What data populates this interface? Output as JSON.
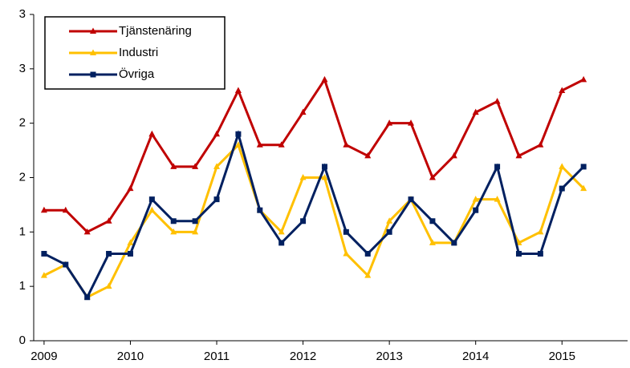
{
  "chart_data": {
    "type": "line",
    "x": [
      2009,
      2009.25,
      2009.5,
      2009.75,
      2010,
      2010.25,
      2010.5,
      2010.75,
      2011,
      2011.25,
      2011.5,
      2011.75,
      2012,
      2012.25,
      2012.5,
      2012.75,
      2013,
      2013.25,
      2013.5,
      2013.75,
      2014,
      2014.25,
      2014.5,
      2014.75,
      2015,
      2015.25
    ],
    "series": [
      {
        "name": "Tjänstenäring",
        "color": "#c00000",
        "marker": "triangle",
        "values": [
          1.2,
          1.2,
          1.0,
          1.1,
          1.4,
          1.9,
          1.6,
          1.6,
          1.9,
          2.3,
          1.8,
          1.8,
          2.1,
          2.4,
          1.8,
          1.7,
          2.0,
          2.0,
          1.5,
          1.7,
          2.1,
          2.2,
          1.7,
          1.8,
          2.3,
          2.4
        ]
      },
      {
        "name": "Industri",
        "color": "#ffc000",
        "marker": "triangle",
        "values": [
          0.6,
          0.7,
          0.4,
          0.5,
          0.9,
          1.2,
          1.0,
          1.0,
          1.6,
          1.8,
          1.2,
          1.0,
          1.5,
          1.5,
          0.8,
          0.6,
          1.1,
          1.3,
          0.9,
          0.9,
          1.3,
          1.3,
          0.9,
          1.0,
          1.6,
          1.4
        ]
      },
      {
        "name": "Övriga",
        "color": "#002060",
        "marker": "square",
        "values": [
          0.8,
          0.7,
          0.4,
          0.8,
          0.8,
          1.3,
          1.1,
          1.1,
          1.3,
          1.9,
          1.2,
          0.9,
          1.1,
          1.6,
          1.0,
          0.8,
          1.0,
          1.3,
          1.1,
          0.9,
          1.2,
          1.6,
          0.8,
          0.8,
          1.4,
          1.6
        ]
      }
    ],
    "xlim": [
      2008.88,
      2015.76
    ],
    "xticks": [
      2009,
      2010,
      2011,
      2012,
      2013,
      2014,
      2015
    ],
    "ylim": [
      0,
      3
    ],
    "yticks": [
      0,
      {
        "value": 0.5,
        "label": "1"
      },
      1,
      {
        "value": 1.5,
        "label": "2"
      },
      2,
      {
        "value": 2.5,
        "label": "3"
      },
      3
    ],
    "grid": false,
    "legend": "upper left"
  }
}
